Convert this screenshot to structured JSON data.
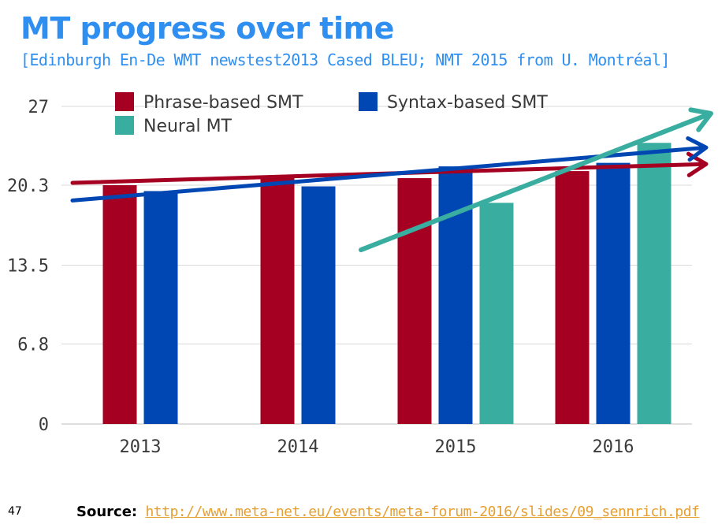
{
  "slide": {
    "title": "MT progress over time",
    "subtitle": "[Edinburgh En-De WMT newstest2013 Cased BLEU; NMT 2015 from U. Montréal]",
    "number": "47",
    "source_label": "Source:",
    "source_url": "http://www.meta-net.eu/events/meta-forum-2016/slides/09_sennrich.pdf"
  },
  "chart_data": {
    "type": "bar",
    "categories": [
      "2013",
      "2014",
      "2015",
      "2016"
    ],
    "ylim": [
      0,
      27
    ],
    "yticks": [
      0,
      6.8,
      13.5,
      20.3,
      27
    ],
    "ytick_labels": [
      "0",
      "6.8",
      "13.5",
      "20.3",
      "27"
    ],
    "grid": true,
    "legend_position": "top",
    "series": [
      {
        "name": "Phrase-based SMT",
        "color": "#a50021",
        "values": [
          20.3,
          20.9,
          20.9,
          21.5
        ]
      },
      {
        "name": "Syntax-based SMT",
        "color": "#0047b3",
        "values": [
          19.8,
          20.2,
          21.9,
          22.2
        ]
      },
      {
        "name": "Neural MT",
        "color": "#38ada0",
        "values": [
          null,
          null,
          18.8,
          23.9
        ]
      }
    ],
    "trend_arrows": [
      {
        "series": "Phrase-based SMT",
        "color": "#a50021",
        "from": 20.5,
        "to": 22.1
      },
      {
        "series": "Syntax-based SMT",
        "color": "#0047b3",
        "from": 19.0,
        "to": 23.5
      },
      {
        "series": "Neural MT",
        "color": "#38ada0",
        "from": 14.8,
        "to": 26.4
      }
    ]
  }
}
